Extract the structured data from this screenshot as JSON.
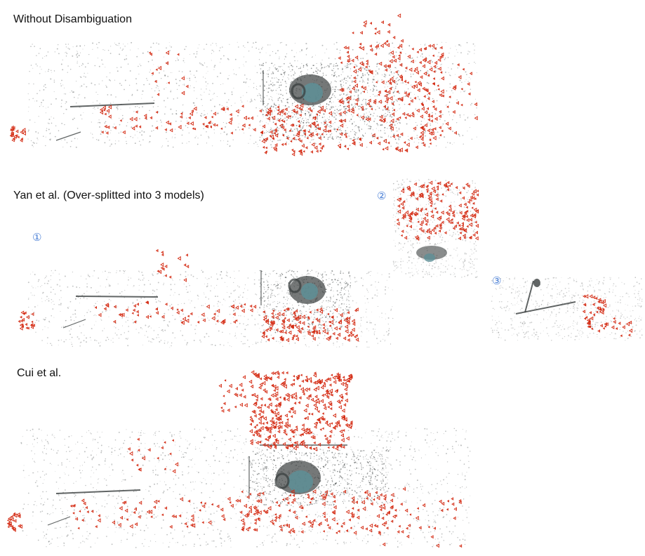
{
  "colors": {
    "camera_marker": "#d42a12",
    "point_cloud": "#3a3f3f",
    "object_tint": "#5e8f96",
    "model_index": "#4a7fd6"
  },
  "panels": [
    {
      "label": "Without Disambiguation"
    },
    {
      "label": "Yan  et al. (Over-splitted into 3 models)",
      "model_markers": [
        "①",
        "②",
        "③"
      ]
    },
    {
      "label": "Cui et al."
    }
  ]
}
